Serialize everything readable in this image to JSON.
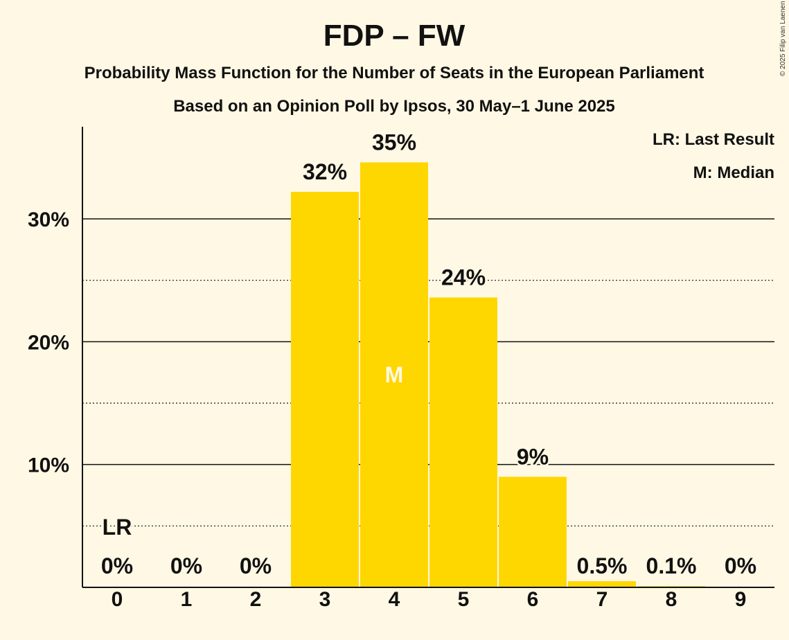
{
  "chart_data": {
    "type": "bar",
    "title": "FDP – FW",
    "subtitle": "Probability Mass Function for the Number of Seats in the European Parliament",
    "source": "Based on an Opinion Poll by Ipsos, 30 May–1 June 2025",
    "copyright": "© 2025 Filip van Laenen",
    "categories": [
      "0",
      "1",
      "2",
      "3",
      "4",
      "5",
      "6",
      "7",
      "8",
      "9"
    ],
    "values": [
      0,
      0,
      0,
      32.2,
      34.6,
      23.6,
      9.0,
      0.5,
      0.1,
      0
    ],
    "data_labels": [
      "0%",
      "0%",
      "0%",
      "32%",
      "35%",
      "24%",
      "9%",
      "0.5%",
      "0.1%",
      "0%"
    ],
    "ylim": [
      0,
      37.5
    ],
    "major_ticks": [
      10,
      20,
      30
    ],
    "major_tick_labels": [
      "10%",
      "20%",
      "30%"
    ],
    "minor_ticks": [
      5,
      15,
      25
    ],
    "last_result_index": 0,
    "last_result_label": "LR",
    "median_index": 4,
    "median_label": "M",
    "legend": [
      "LR: Last Result",
      "M: Median"
    ],
    "bar_color": "#ffd700",
    "background_color": "#fff8e4"
  }
}
